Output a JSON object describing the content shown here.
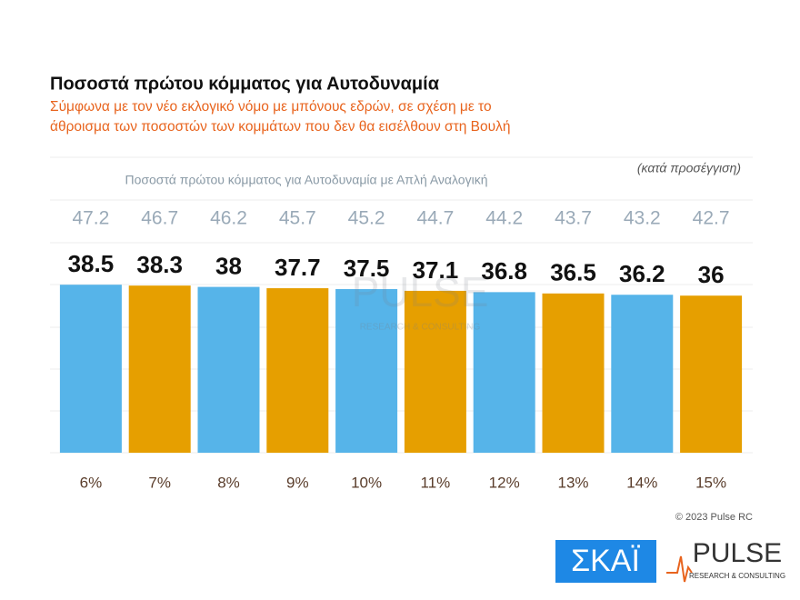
{
  "chart_data": {
    "type": "bar",
    "title": "Ποσοστά πρώτου κόμματος για Αυτοδυναμία",
    "subtitle": [
      "Σύμφωνα με τον νέο εκλογικό νόμο με μπόνους εδρών, σε σχέση με το",
      "άθροισμα των ποσοστών των κομμάτων που δεν θα εισέλθουν στη Βουλή"
    ],
    "note": "(κατά προσέγγιση)",
    "proportional_label": "Ποσοστά πρώτου κόμματος για Αυτοδυναμία με Απλή Αναλογική",
    "proportional_values": [
      47.2,
      46.7,
      46.2,
      45.7,
      45.2,
      44.7,
      44.2,
      43.7,
      43.2,
      42.7
    ],
    "categories": [
      "6%",
      "7%",
      "8%",
      "9%",
      "10%",
      "11%",
      "12%",
      "13%",
      "14%",
      "15%"
    ],
    "values": [
      38.5,
      38.3,
      38,
      37.7,
      37.5,
      37.1,
      36.8,
      36.5,
      36.2,
      36
    ],
    "colors": [
      "#56b4e9",
      "#e69f00",
      "#56b4e9",
      "#e69f00",
      "#56b4e9",
      "#e69f00",
      "#56b4e9",
      "#e69f00",
      "#56b4e9",
      "#e69f00"
    ],
    "ylim": [
      0,
      50
    ],
    "copyright": "© 2023 Pulse RC",
    "logos": {
      "skai": "ΣΚΑΪ",
      "pulse": "PULSE",
      "pulse_tagline": "RESEARCH & CONSULTING"
    }
  }
}
